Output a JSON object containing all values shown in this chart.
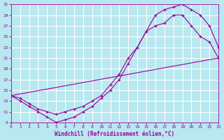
{
  "xlabel": "Windchill (Refroidissement éolien,°C)",
  "xlim": [
    0,
    23
  ],
  "ylim": [
    9,
    31
  ],
  "xticks": [
    0,
    1,
    2,
    3,
    4,
    5,
    6,
    7,
    8,
    9,
    10,
    11,
    12,
    13,
    14,
    15,
    16,
    17,
    18,
    19,
    20,
    21,
    22,
    23
  ],
  "yticks": [
    9,
    11,
    13,
    15,
    17,
    19,
    21,
    23,
    25,
    27,
    29,
    31
  ],
  "color": "#990099",
  "bg_color": "#b8e8f0",
  "grid_color": "#ffffff",
  "line1_x": [
    0,
    1,
    2,
    3,
    4,
    5,
    6,
    7,
    8,
    9,
    10,
    11,
    12,
    13,
    14,
    15,
    16,
    17,
    18,
    19,
    20,
    21,
    22,
    23
  ],
  "line1_y": [
    14,
    13,
    12,
    11,
    10,
    9,
    9.5,
    10,
    11,
    12,
    13.5,
    15,
    17,
    20,
    23,
    26,
    29,
    30,
    30.5,
    31,
    30,
    29,
    27,
    23
  ],
  "line2_x": [
    0,
    1,
    2,
    3,
    4,
    5,
    6,
    7,
    8,
    9,
    10,
    11,
    12,
    13,
    14,
    15,
    16,
    17,
    18,
    19,
    20,
    21,
    22,
    23
  ],
  "line2_y": [
    14,
    13.5,
    12.5,
    11.5,
    11,
    10.5,
    11,
    11.5,
    12,
    13,
    14,
    16,
    18,
    21,
    23,
    26,
    27,
    27.5,
    29,
    29,
    27,
    25,
    24,
    21
  ],
  "line3_x": [
    0,
    23
  ],
  "line3_y": [
    14,
    21
  ]
}
